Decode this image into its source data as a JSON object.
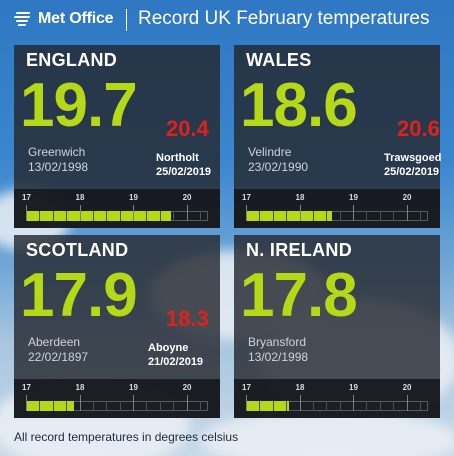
{
  "header": {
    "logo_text": "Met Office",
    "title": "Record UK February temperatures",
    "logo_icon": "met-office-logo-icon"
  },
  "scale_ticks": [
    "17",
    "18",
    "19",
    "20"
  ],
  "scale_range": [
    17,
    20.4
  ],
  "panels": [
    {
      "name": "ENGLAND",
      "old_record": "19.7",
      "old_value": 19.7,
      "old_location": "Greenwich",
      "old_date": "13/02/1998",
      "new_record": "20.4",
      "new_location": "Northolt",
      "new_date": "25/02/2019"
    },
    {
      "name": "WALES",
      "old_record": "18.6",
      "old_value": 18.6,
      "old_location": "Velindre",
      "old_date": "23/02/1990",
      "new_record": "20.6",
      "new_location": "Trawsgoed",
      "new_date": "25/02/2019"
    },
    {
      "name": "SCOTLAND",
      "old_record": "17.9",
      "old_value": 17.9,
      "old_location": "Aberdeen",
      "old_date": "22/02/1897",
      "new_record": "18.3",
      "new_location": "Aboyne",
      "new_date": "21/02/2019"
    },
    {
      "name": "N. IRELAND",
      "old_record": "17.8",
      "old_value": 17.8,
      "old_location": "Bryansford",
      "old_date": "13/02/1998"
    }
  ],
  "colors": {
    "record_green": "#b5d916",
    "new_record_red": "#e0201c"
  },
  "footnote": "All record temperatures in degrees celsius"
}
